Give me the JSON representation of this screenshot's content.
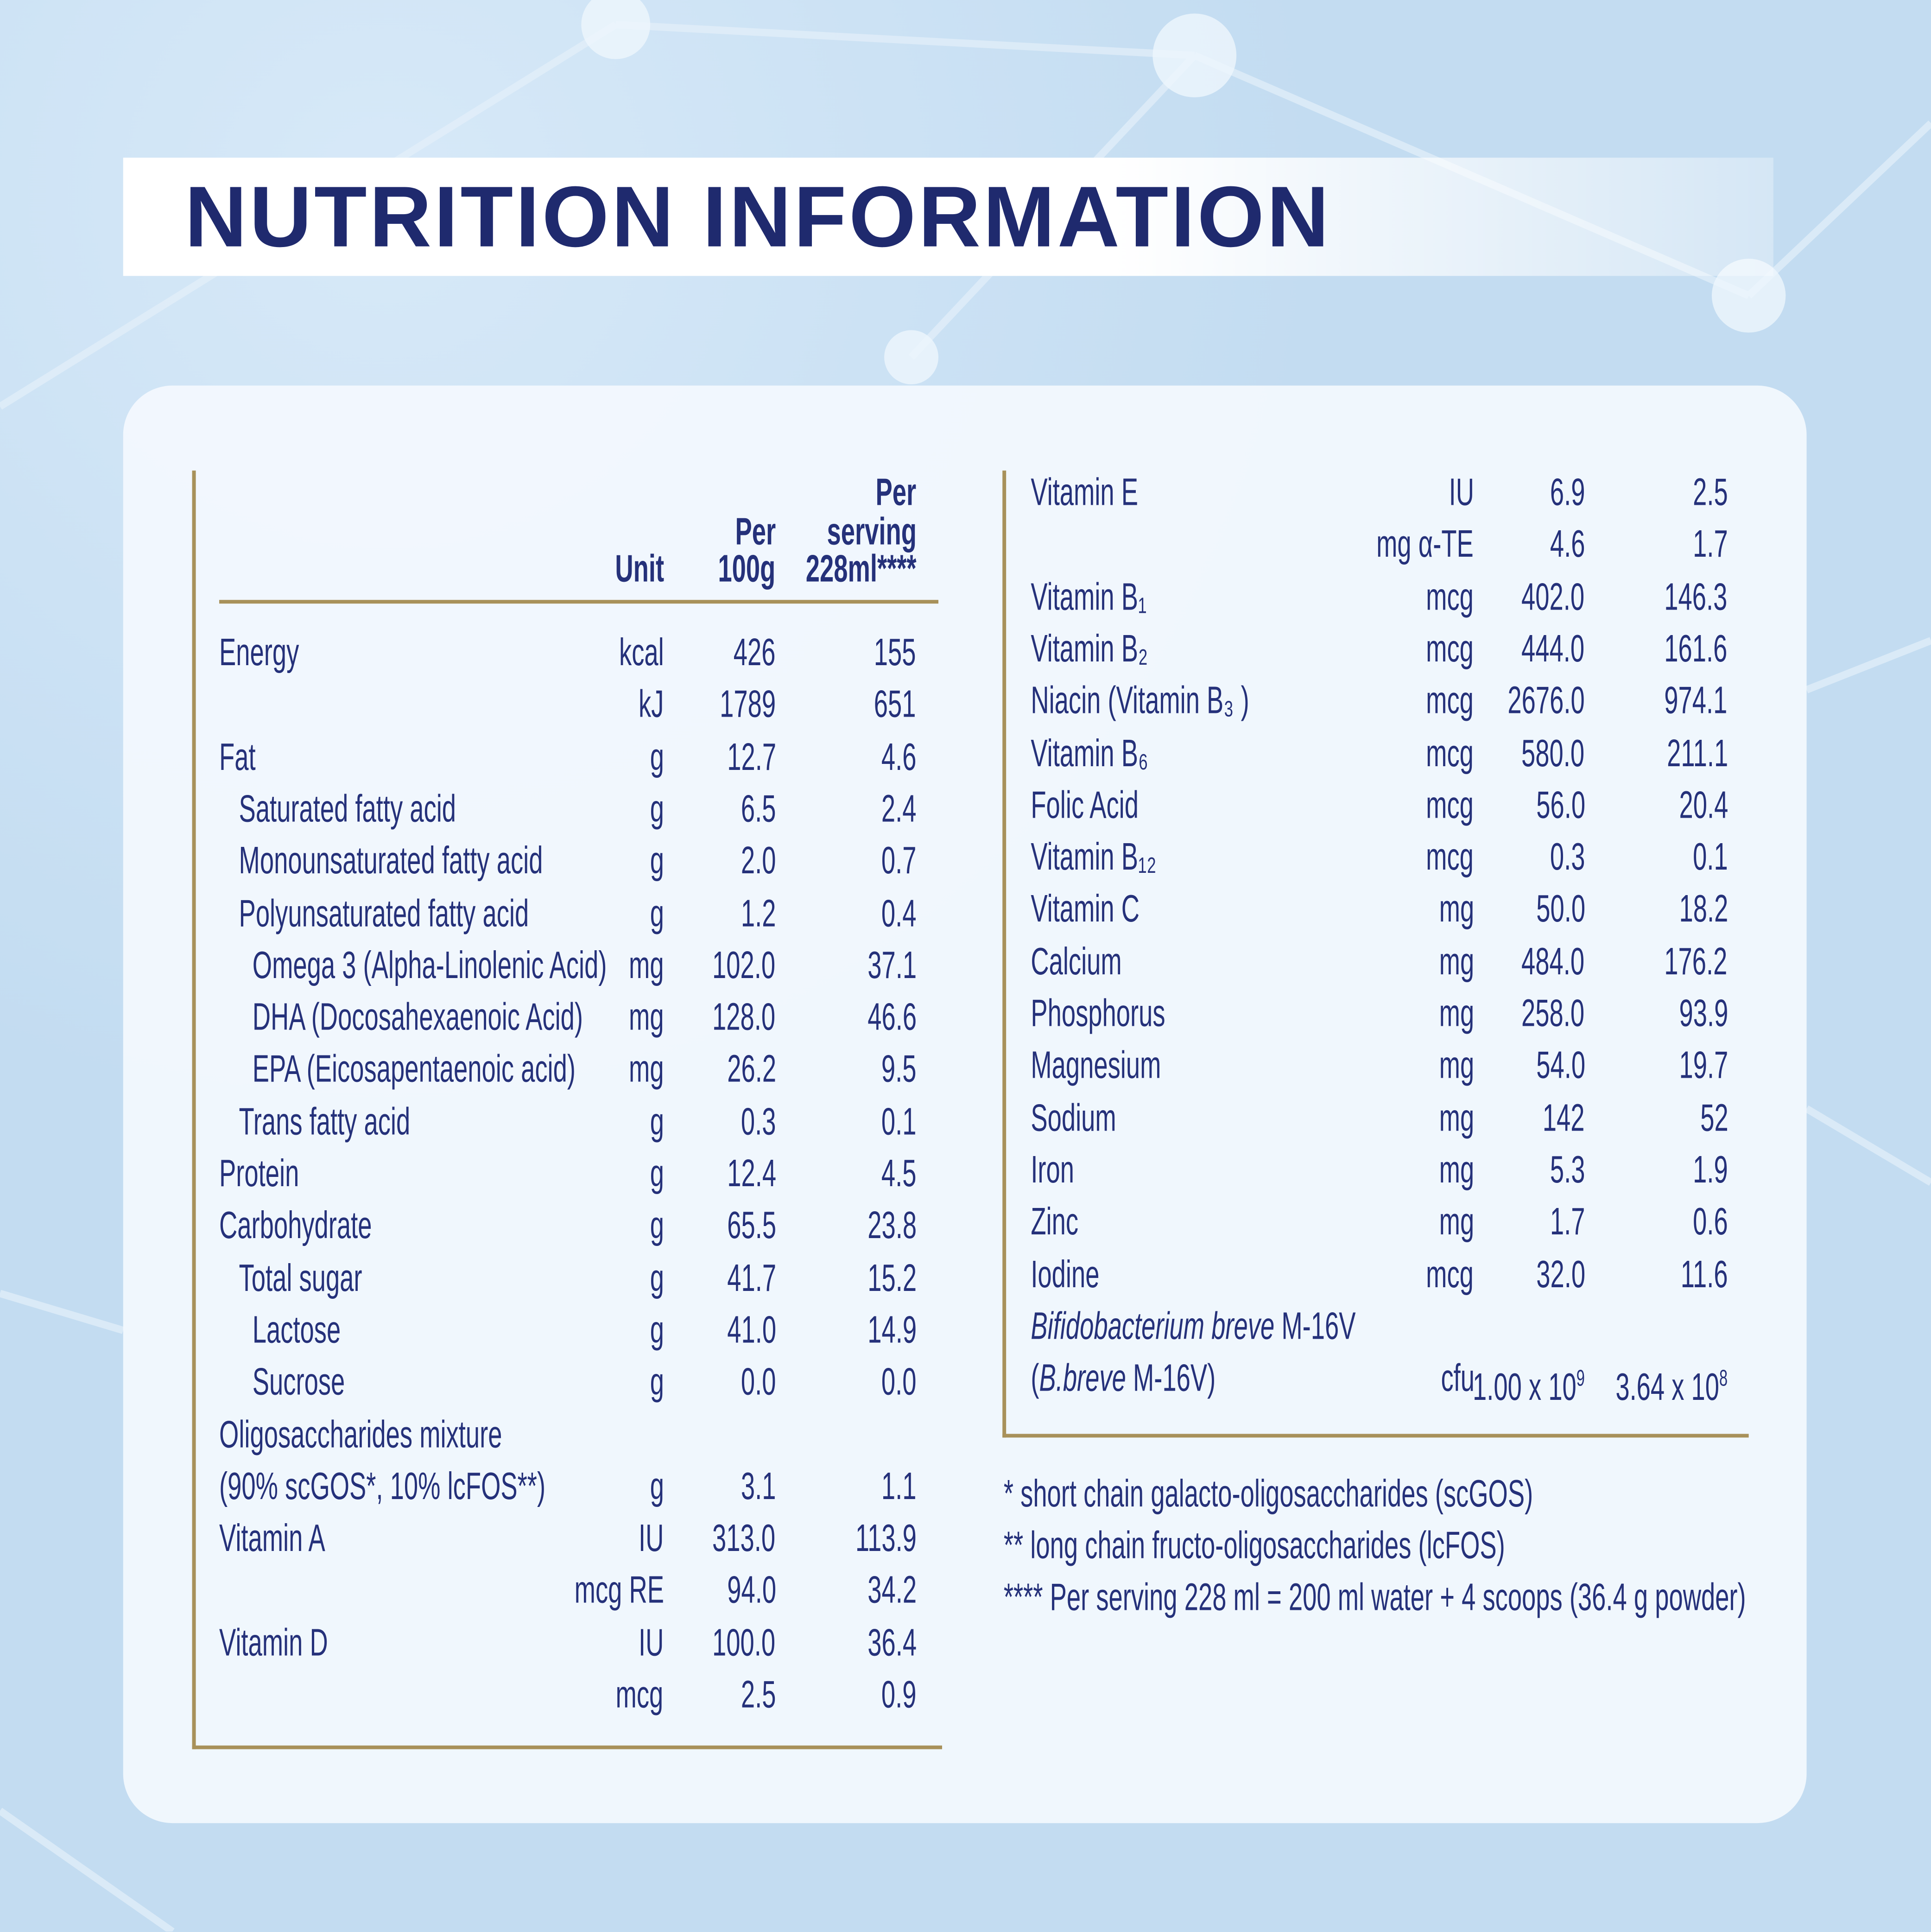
{
  "title": "NUTRITION INFORMATION",
  "colors": {
    "text": "#25317a",
    "title": "#1f2a6e",
    "rule": "#a8915a",
    "background": "#c3dcf1"
  },
  "left_table": {
    "headers": {
      "unit": "Unit",
      "per100_l1": "Per",
      "per100_l2": "100g",
      "serv_l1": "Per",
      "serv_l2": "serving",
      "serv_l3": "228ml****"
    },
    "rows": [
      {
        "name": "Energy",
        "indent": 0,
        "unit": "kcal",
        "per100": "426",
        "serving": "155"
      },
      {
        "name": "",
        "indent": 0,
        "unit": "kJ",
        "per100": "1789",
        "serving": "651"
      },
      {
        "name": "Fat",
        "indent": 0,
        "unit": "g",
        "per100": "12.7",
        "serving": "4.6"
      },
      {
        "name": "Saturated fatty acid",
        "indent": 1,
        "unit": "g",
        "per100": "6.5",
        "serving": "2.4"
      },
      {
        "name": "Monounsaturated fatty acid",
        "indent": 1,
        "unit": "g",
        "per100": "2.0",
        "serving": "0.7"
      },
      {
        "name": "Polyunsaturated fatty acid",
        "indent": 1,
        "unit": "g",
        "per100": "1.2",
        "serving": "0.4"
      },
      {
        "name": "Omega 3 (Alpha-Linolenic Acid)",
        "indent": 2,
        "unit": "mg",
        "per100": "102.0",
        "serving": "37.1"
      },
      {
        "name": "DHA (Docosahexaenoic Acid)",
        "indent": 2,
        "unit": "mg",
        "per100": "128.0",
        "serving": "46.6"
      },
      {
        "name": "EPA (Eicosapentaenoic acid)",
        "indent": 2,
        "unit": "mg",
        "per100": "26.2",
        "serving": "9.5"
      },
      {
        "name": "Trans fatty acid",
        "indent": 1,
        "unit": "g",
        "per100": "0.3",
        "serving": "0.1"
      },
      {
        "name": "Protein",
        "indent": 0,
        "unit": "g",
        "per100": "12.4",
        "serving": "4.5"
      },
      {
        "name": "Carbohydrate",
        "indent": 0,
        "unit": "g",
        "per100": "65.5",
        "serving": "23.8"
      },
      {
        "name": "Total sugar",
        "indent": 1,
        "unit": "g",
        "per100": "41.7",
        "serving": "15.2"
      },
      {
        "name": "Lactose",
        "indent": 2,
        "unit": "g",
        "per100": "41.0",
        "serving": "14.9"
      },
      {
        "name": "Sucrose",
        "indent": 2,
        "unit": "g",
        "per100": "0.0",
        "serving": "0.0"
      },
      {
        "name": "Oligosaccharides mixture",
        "indent": 0,
        "unit": "",
        "per100": "",
        "serving": ""
      },
      {
        "name": "(90% scGOS*, 10% lcFOS**)",
        "indent": 0,
        "unit": "g",
        "per100": "3.1",
        "serving": "1.1"
      },
      {
        "name": "Vitamin A",
        "indent": 0,
        "unit": "IU",
        "per100": "313.0",
        "serving": "113.9"
      },
      {
        "name": "",
        "indent": 0,
        "unit": "mcg RE",
        "per100": "94.0",
        "serving": "34.2"
      },
      {
        "name": "Vitamin D",
        "indent": 0,
        "unit": "IU",
        "per100": "100.0",
        "serving": "36.4"
      },
      {
        "name": "",
        "indent": 0,
        "unit": "mcg",
        "per100": "2.5",
        "serving": "0.9"
      }
    ]
  },
  "right_table": {
    "rows": [
      {
        "name": "Vitamin E",
        "unit": "IU",
        "per100": "6.9",
        "serving": "2.5"
      },
      {
        "name": "",
        "unit": "mg α-TE",
        "per100": "4.6",
        "serving": "1.7"
      },
      {
        "name": "Vitamin B₁",
        "unit": "mcg",
        "per100": "402.0",
        "serving": "146.3"
      },
      {
        "name": "Vitamin B₂",
        "unit": "mcg",
        "per100": "444.0",
        "serving": "161.6"
      },
      {
        "name": "Niacin (Vitamin B₃ )",
        "unit": "mcg",
        "per100": "2676.0",
        "serving": "974.1"
      },
      {
        "name": "Vitamin B₆",
        "unit": "mcg",
        "per100": "580.0",
        "serving": "211.1"
      },
      {
        "name": "Folic Acid",
        "unit": "mcg",
        "per100": "56.0",
        "serving": "20.4"
      },
      {
        "name": "Vitamin B₁₂",
        "unit": "mcg",
        "per100": "0.3",
        "serving": "0.1"
      },
      {
        "name": "Vitamin C",
        "unit": "mg",
        "per100": "50.0",
        "serving": "18.2"
      },
      {
        "name": "Calcium",
        "unit": "mg",
        "per100": "484.0",
        "serving": "176.2"
      },
      {
        "name": "Phosphorus",
        "unit": "mg",
        "per100": "258.0",
        "serving": "93.9"
      },
      {
        "name": "Magnesium",
        "unit": "mg",
        "per100": "54.0",
        "serving": "19.7"
      },
      {
        "name": "Sodium",
        "unit": "mg",
        "per100": "142",
        "serving": "52"
      },
      {
        "name": "Iron",
        "unit": "mg",
        "per100": "5.3",
        "serving": "1.9"
      },
      {
        "name": "Zinc",
        "unit": "mg",
        "per100": "1.7",
        "serving": "0.6"
      },
      {
        "name": "Iodine",
        "unit": "mcg",
        "per100": "32.0",
        "serving": "11.6"
      }
    ],
    "probiotic": {
      "name_italic": "Bifidobacterium breve",
      "name_rest": " M-16V",
      "line2_open": "(",
      "line2_italic": "B.breve",
      "line2_rest": " M-16V)",
      "unit": "cfu",
      "per100_base": "1.00 x 10",
      "per100_exp": "9",
      "serving_base": "3.64 x 10",
      "serving_exp": "8"
    }
  },
  "footnotes": [
    "* short chain galacto-oligosaccharides (scGOS)",
    "** long chain fructo-oligosaccharides (lcFOS)",
    "**** Per serving 228 ml = 200 ml water + 4 scoops (36.4 g powder)"
  ]
}
